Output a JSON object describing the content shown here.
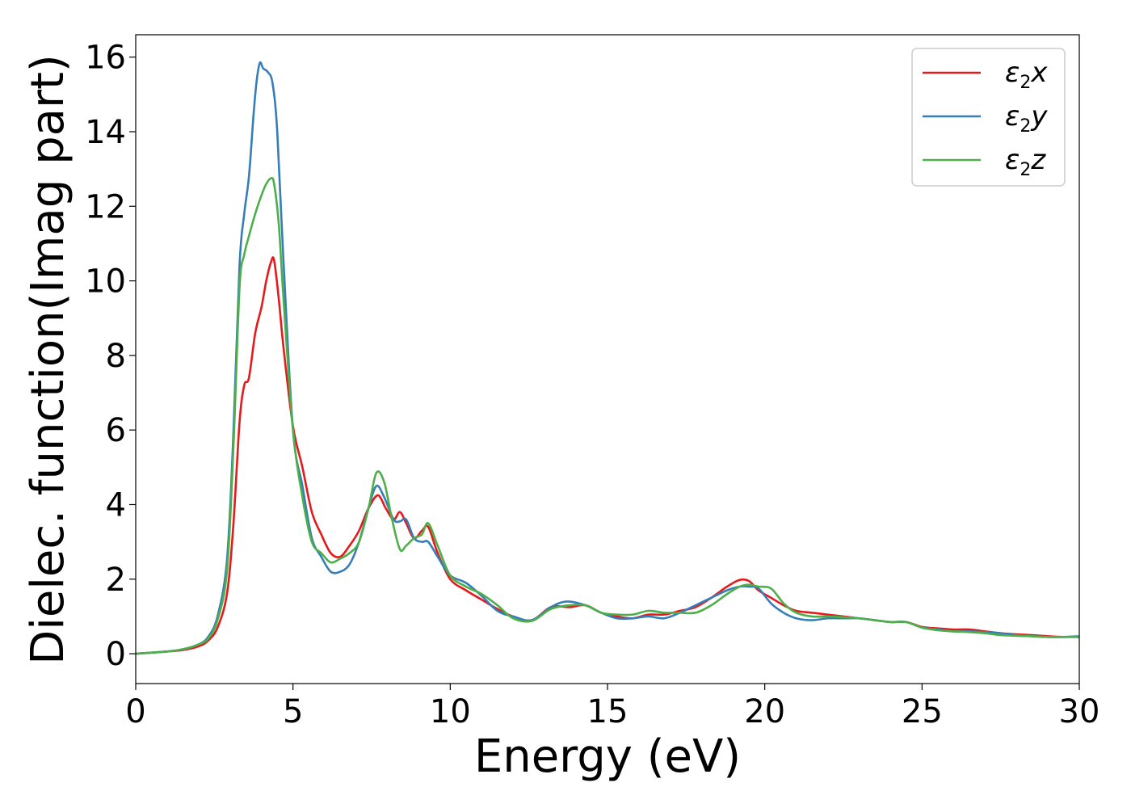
{
  "chart_data": {
    "type": "line",
    "xlabel": "Energy (eV)",
    "ylabel": "Dielec. function(Imag part)",
    "xlim": [
      0,
      30
    ],
    "ylim": [
      -0.8,
      16.6
    ],
    "xticks": [
      0,
      5,
      10,
      15,
      20,
      25,
      30
    ],
    "yticks": [
      0,
      2,
      4,
      6,
      8,
      10,
      12,
      14,
      16
    ],
    "grid": false,
    "legend_position": "top-right",
    "series": [
      {
        "name": "ε2x",
        "legend": {
          "base": "ε",
          "sub": "2",
          "var": "x"
        },
        "color": "#e41a1c",
        "x": [
          0,
          1,
          1.5,
          2,
          2.3,
          2.6,
          2.9,
          3.1,
          3.3,
          3.45,
          3.6,
          3.8,
          4.0,
          4.15,
          4.3,
          4.4,
          4.55,
          4.7,
          5.0,
          5.3,
          5.6,
          5.9,
          6.2,
          6.5,
          6.8,
          7.1,
          7.4,
          7.7,
          7.95,
          8.2,
          8.4,
          8.6,
          8.85,
          9.1,
          9.3,
          9.6,
          10.0,
          10.5,
          11.0,
          11.5,
          12.0,
          12.6,
          13.2,
          13.8,
          14.3,
          14.8,
          15.3,
          15.8,
          16.3,
          16.8,
          17.3,
          17.8,
          18.3,
          18.8,
          19.2,
          19.5,
          19.8,
          20.2,
          20.6,
          21.0,
          21.5,
          22.0,
          22.5,
          23.0,
          23.5,
          24.0,
          24.5,
          25.0,
          25.5,
          26.0,
          26.5,
          27.0,
          27.5,
          28.0,
          28.5,
          29.0,
          29.5,
          30.0
        ],
        "y": [
          0,
          0.06,
          0.1,
          0.2,
          0.35,
          0.7,
          1.6,
          3.4,
          6.2,
          7.2,
          7.4,
          8.6,
          9.3,
          10.0,
          10.5,
          10.55,
          9.5,
          8.2,
          6.1,
          5.0,
          3.8,
          3.2,
          2.7,
          2.6,
          2.9,
          3.3,
          3.9,
          4.25,
          3.9,
          3.6,
          3.8,
          3.5,
          3.1,
          3.3,
          3.4,
          2.7,
          2.0,
          1.7,
          1.45,
          1.2,
          1.0,
          0.9,
          1.25,
          1.25,
          1.3,
          1.1,
          1.0,
          0.95,
          1.05,
          1.05,
          1.15,
          1.25,
          1.5,
          1.8,
          1.98,
          1.95,
          1.7,
          1.5,
          1.3,
          1.15,
          1.1,
          1.05,
          1.0,
          0.95,
          0.9,
          0.85,
          0.85,
          0.72,
          0.68,
          0.65,
          0.65,
          0.6,
          0.55,
          0.52,
          0.5,
          0.47,
          0.45,
          0.45
        ]
      },
      {
        "name": "ε2y",
        "legend": {
          "base": "ε",
          "sub": "2",
          "var": "y"
        },
        "color": "#377eb8",
        "x": [
          0,
          1,
          1.5,
          2,
          2.3,
          2.6,
          2.9,
          3.1,
          3.3,
          3.45,
          3.6,
          3.75,
          3.85,
          3.95,
          4.05,
          4.2,
          4.35,
          4.5,
          4.7,
          5.0,
          5.3,
          5.6,
          5.9,
          6.2,
          6.5,
          6.8,
          7.1,
          7.4,
          7.65,
          7.9,
          8.2,
          8.4,
          8.6,
          8.85,
          9.1,
          9.3,
          9.6,
          10.0,
          10.5,
          11.0,
          11.5,
          12.0,
          12.6,
          13.2,
          13.7,
          14.3,
          14.8,
          15.3,
          15.8,
          16.3,
          16.8,
          17.3,
          17.8,
          18.3,
          18.8,
          19.2,
          19.5,
          19.8,
          20.2,
          20.6,
          21.0,
          21.5,
          22.0,
          22.5,
          23.0,
          23.5,
          24.0,
          24.5,
          25.0,
          25.5,
          26.0,
          26.5,
          27.0,
          27.5,
          28.0,
          28.5,
          29.0,
          29.5,
          30.0
        ],
        "y": [
          0,
          0.06,
          0.12,
          0.25,
          0.45,
          1.0,
          2.5,
          5.8,
          10.4,
          11.8,
          12.8,
          14.5,
          15.4,
          15.85,
          15.7,
          15.6,
          15.3,
          14.0,
          10.5,
          6.0,
          4.5,
          3.1,
          2.6,
          2.2,
          2.2,
          2.4,
          3.0,
          3.9,
          4.5,
          4.2,
          3.6,
          3.55,
          3.6,
          3.1,
          3.0,
          3.0,
          2.6,
          2.1,
          1.9,
          1.55,
          1.15,
          1.0,
          0.9,
          1.25,
          1.4,
          1.3,
          1.1,
          0.95,
          0.95,
          1.0,
          0.95,
          1.1,
          1.3,
          1.5,
          1.7,
          1.8,
          1.8,
          1.75,
          1.35,
          1.1,
          0.95,
          0.9,
          0.95,
          0.95,
          0.95,
          0.9,
          0.85,
          0.85,
          0.7,
          0.65,
          0.6,
          0.6,
          0.58,
          0.55,
          0.5,
          0.47,
          0.45,
          0.45,
          0.47
        ]
      },
      {
        "name": "ε2z",
        "legend": {
          "base": "ε",
          "sub": "2",
          "var": "z"
        },
        "color": "#4daf4a",
        "x": [
          0,
          1,
          1.5,
          2,
          2.3,
          2.6,
          2.9,
          3.1,
          3.3,
          3.45,
          3.6,
          3.8,
          4.0,
          4.15,
          4.3,
          4.4,
          4.55,
          4.7,
          5.0,
          5.3,
          5.6,
          5.9,
          6.2,
          6.5,
          6.8,
          7.1,
          7.4,
          7.65,
          7.9,
          8.15,
          8.4,
          8.6,
          8.85,
          9.1,
          9.3,
          9.6,
          10.0,
          10.5,
          11.0,
          11.5,
          12.0,
          12.6,
          13.2,
          13.8,
          14.3,
          14.8,
          15.3,
          15.8,
          16.3,
          16.8,
          17.3,
          17.8,
          18.3,
          18.8,
          19.2,
          19.5,
          19.8,
          20.2,
          20.6,
          21.0,
          21.5,
          22.0,
          22.5,
          23.0,
          23.5,
          24.0,
          24.5,
          25.0,
          25.5,
          26.0,
          26.5,
          27.0,
          27.5,
          28.0,
          28.5,
          29.0,
          29.5,
          30.0
        ],
        "y": [
          0,
          0.06,
          0.12,
          0.25,
          0.4,
          0.9,
          2.2,
          5.4,
          9.8,
          10.7,
          11.2,
          11.8,
          12.3,
          12.6,
          12.75,
          12.6,
          11.5,
          9.5,
          6.0,
          4.2,
          3.0,
          2.7,
          2.45,
          2.55,
          2.7,
          3.0,
          3.9,
          4.85,
          4.6,
          3.6,
          2.8,
          2.9,
          3.1,
          3.2,
          3.5,
          2.9,
          2.1,
          1.8,
          1.6,
          1.3,
          0.95,
          0.88,
          1.2,
          1.3,
          1.3,
          1.1,
          1.05,
          1.05,
          1.15,
          1.1,
          1.1,
          1.1,
          1.3,
          1.6,
          1.8,
          1.85,
          1.8,
          1.75,
          1.35,
          1.1,
          1.0,
          1.0,
          0.98,
          0.95,
          0.9,
          0.85,
          0.85,
          0.7,
          0.63,
          0.6,
          0.58,
          0.55,
          0.5,
          0.48,
          0.47,
          0.45,
          0.45,
          0.46
        ]
      }
    ]
  }
}
